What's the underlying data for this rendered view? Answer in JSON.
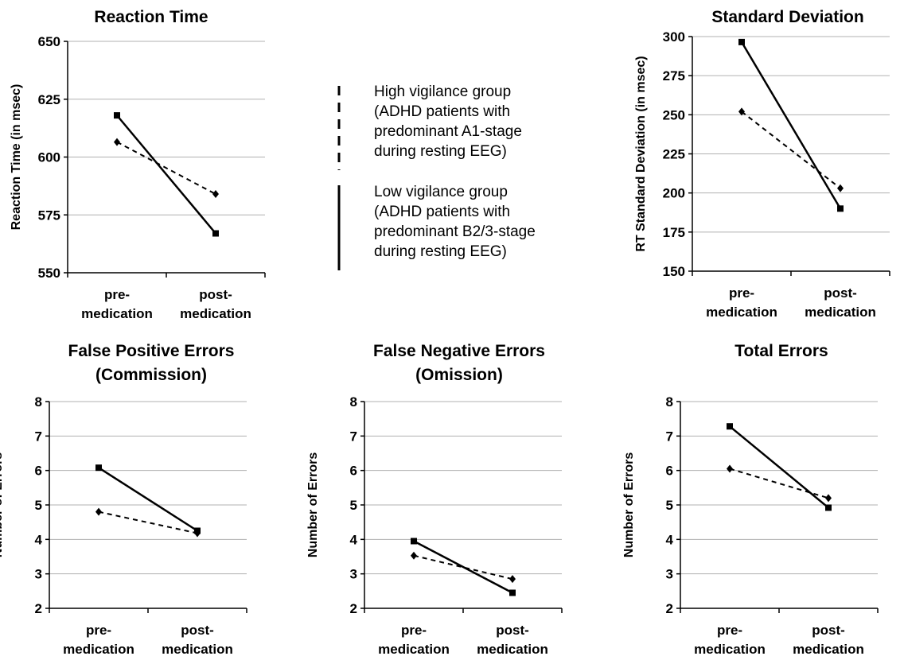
{
  "legend": {
    "high": [
      "High vigilance group",
      "(ADHD patients with",
      "predominant A1-stage",
      "during resting EEG)"
    ],
    "low": [
      "Low vigilance group",
      "(ADHD patients with",
      "predominant B2/3-stage",
      "during resting EEG)"
    ]
  },
  "chart_data": [
    {
      "type": "line",
      "title": [
        "Reaction Time"
      ],
      "ylabel": "Reaction Time (in msec)",
      "categories": [
        [
          "pre-",
          "medication"
        ],
        [
          "post-",
          "medication"
        ]
      ],
      "ylim": [
        550,
        650
      ],
      "yticks": [
        550,
        575,
        600,
        625,
        650
      ],
      "grid": true,
      "series": [
        {
          "name": "High vigilance group",
          "style": "dashed",
          "marker": "diamond",
          "values": [
            606.5,
            584
          ]
        },
        {
          "name": "Low vigilance group",
          "style": "solid",
          "marker": "square",
          "values": [
            618,
            567
          ]
        }
      ]
    },
    {
      "type": "line",
      "title": [
        "Standard Deviation"
      ],
      "ylabel": "RT Standard Deviation (in msec)",
      "categories": [
        [
          "pre-",
          "medication"
        ],
        [
          "post-",
          "medication"
        ]
      ],
      "ylim": [
        150,
        300
      ],
      "yticks": [
        150,
        175,
        200,
        225,
        250,
        275,
        300
      ],
      "grid": true,
      "series": [
        {
          "name": "High vigilance group",
          "style": "dashed",
          "marker": "diamond",
          "values": [
            252,
            203
          ]
        },
        {
          "name": "Low vigilance group",
          "style": "solid",
          "marker": "square",
          "values": [
            296.5,
            190
          ]
        }
      ]
    },
    {
      "type": "line",
      "title": [
        "False Positive Errors",
        "(Commission)"
      ],
      "ylabel": "Number of Errors",
      "categories": [
        [
          "pre-",
          "medication"
        ],
        [
          "post-",
          "medication"
        ]
      ],
      "ylim": [
        2,
        8
      ],
      "yticks": [
        2,
        3,
        4,
        5,
        6,
        7,
        8
      ],
      "grid": true,
      "series": [
        {
          "name": "High vigilance group",
          "style": "dashed",
          "marker": "diamond",
          "values": [
            4.8,
            4.18
          ]
        },
        {
          "name": "Low vigilance group",
          "style": "solid",
          "marker": "square",
          "values": [
            6.08,
            4.25
          ]
        }
      ]
    },
    {
      "type": "line",
      "title": [
        "False Negative Errors",
        "(Omission)"
      ],
      "ylabel": "Number of Errors",
      "categories": [
        [
          "pre-",
          "medication"
        ],
        [
          "post-",
          "medication"
        ]
      ],
      "ylim": [
        2,
        8
      ],
      "yticks": [
        2,
        3,
        4,
        5,
        6,
        7,
        8
      ],
      "grid": true,
      "series": [
        {
          "name": "High vigilance group",
          "style": "dashed",
          "marker": "diamond",
          "values": [
            3.53,
            2.85
          ]
        },
        {
          "name": "Low vigilance group",
          "style": "solid",
          "marker": "square",
          "values": [
            3.95,
            2.45
          ]
        }
      ]
    },
    {
      "type": "line",
      "title": [
        "Total Errors"
      ],
      "ylabel": "Number of Errors",
      "categories": [
        [
          "pre-",
          "medication"
        ],
        [
          "post-",
          "medication"
        ]
      ],
      "ylim": [
        2,
        8
      ],
      "yticks": [
        2,
        3,
        4,
        5,
        6,
        7,
        8
      ],
      "grid": true,
      "series": [
        {
          "name": "High vigilance group",
          "style": "dashed",
          "marker": "diamond",
          "values": [
            6.05,
            5.2
          ]
        },
        {
          "name": "Low vigilance group",
          "style": "solid",
          "marker": "square",
          "values": [
            7.28,
            4.92
          ]
        }
      ]
    }
  ]
}
